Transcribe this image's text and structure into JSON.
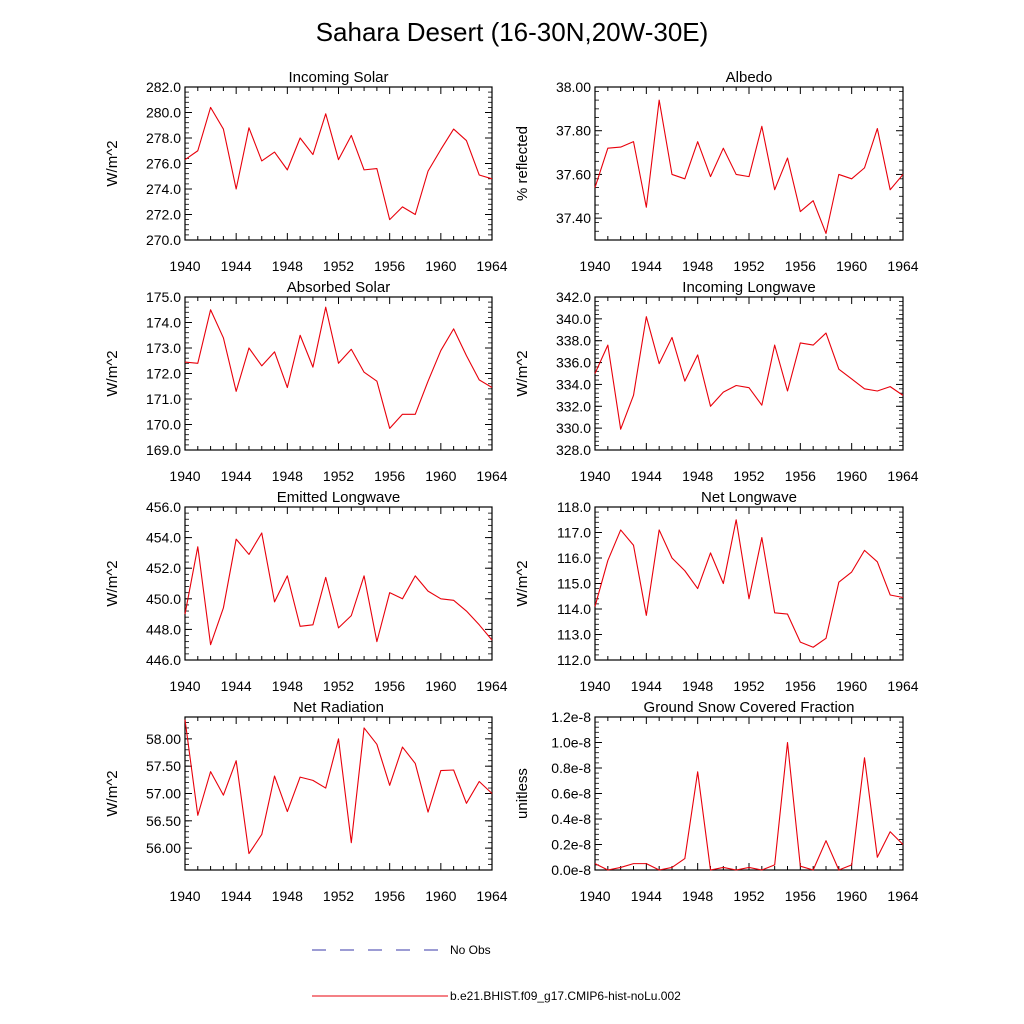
{
  "figure": {
    "title": "Sahara Desert (16-30N,20W-30E)"
  },
  "legend": {
    "entries": [
      {
        "label": "No Obs",
        "color": "#3a3aa8",
        "style": "dashed"
      },
      {
        "label": "b.e21.BHIST.f09_g17.CMIP6-hist-noLu.002",
        "color": "#e8000b",
        "style": "solid"
      }
    ]
  },
  "chart_data": [
    {
      "type": "line",
      "title": "Incoming Solar",
      "ylabel": "W/m^2",
      "xlim": [
        1940,
        1964
      ],
      "ylim": [
        270,
        282
      ],
      "xticks": [
        1940,
        1944,
        1948,
        1952,
        1956,
        1960,
        1964
      ],
      "xtick_labels": [
        "1940",
        "1944",
        "1948",
        "1952",
        "1956",
        "1960",
        "1964"
      ],
      "yticks": [
        270,
        272,
        274,
        276,
        278,
        280,
        282
      ],
      "ytick_labels": [
        "270.0",
        "272.0",
        "274.0",
        "276.0",
        "278.0",
        "280.0",
        "282.0"
      ],
      "x": [
        1940,
        1941,
        1942,
        1943,
        1944,
        1945,
        1946,
        1947,
        1948,
        1949,
        1950,
        1951,
        1952,
        1953,
        1954,
        1955,
        1956,
        1957,
        1958,
        1959,
        1960,
        1961,
        1962,
        1963,
        1964
      ],
      "series": [
        {
          "name": "b.e21.BHIST.f09_g17.CMIP6-hist-noLu.002",
          "color": "#e8000b",
          "values": [
            276.3,
            277.0,
            280.4,
            278.7,
            274.0,
            278.8,
            276.2,
            276.9,
            275.5,
            278.0,
            276.7,
            279.9,
            276.3,
            278.2,
            275.5,
            275.6,
            271.6,
            272.6,
            272.0,
            275.4,
            277.1,
            278.7,
            277.8,
            275.1,
            274.8
          ]
        }
      ],
      "grid": false
    },
    {
      "type": "line",
      "title": "Albedo",
      "ylabel": "% reflected",
      "xlim": [
        1940,
        1964
      ],
      "ylim": [
        37.3,
        38.0
      ],
      "xticks": [
        1940,
        1944,
        1948,
        1952,
        1956,
        1960,
        1964
      ],
      "xtick_labels": [
        "1940",
        "1944",
        "1948",
        "1952",
        "1956",
        "1960",
        "1964"
      ],
      "yticks": [
        37.4,
        37.6,
        37.8,
        38.0
      ],
      "ytick_labels": [
        "37.40",
        "37.60",
        "37.80",
        "38.00"
      ],
      "x": [
        1940,
        1941,
        1942,
        1943,
        1944,
        1945,
        1946,
        1947,
        1948,
        1949,
        1950,
        1951,
        1952,
        1953,
        1954,
        1955,
        1956,
        1957,
        1958,
        1959,
        1960,
        1961,
        1962,
        1963,
        1964
      ],
      "series": [
        {
          "name": "b.e21.BHIST.f09_g17.CMIP6-hist-noLu.002",
          "color": "#e8000b",
          "values": [
            37.54,
            37.72,
            37.725,
            37.75,
            37.45,
            37.94,
            37.6,
            37.58,
            37.75,
            37.59,
            37.72,
            37.6,
            37.59,
            37.82,
            37.53,
            37.675,
            37.43,
            37.48,
            37.33,
            37.6,
            37.58,
            37.63,
            37.81,
            37.53,
            37.6
          ]
        }
      ],
      "grid": false
    },
    {
      "type": "line",
      "title": "Absorbed Solar",
      "ylabel": "W/m^2",
      "xlim": [
        1940,
        1964
      ],
      "ylim": [
        169,
        175
      ],
      "xticks": [
        1940,
        1944,
        1948,
        1952,
        1956,
        1960,
        1964
      ],
      "xtick_labels": [
        "1940",
        "1944",
        "1948",
        "1952",
        "1956",
        "1960",
        "1964"
      ],
      "yticks": [
        169,
        170,
        171,
        172,
        173,
        174,
        175
      ],
      "ytick_labels": [
        "169.0",
        "170.0",
        "171.0",
        "172.0",
        "173.0",
        "174.0",
        "175.0"
      ],
      "x": [
        1940,
        1941,
        1942,
        1943,
        1944,
        1945,
        1946,
        1947,
        1948,
        1949,
        1950,
        1951,
        1952,
        1953,
        1954,
        1955,
        1956,
        1957,
        1958,
        1959,
        1960,
        1961,
        1962,
        1963,
        1964
      ],
      "series": [
        {
          "name": "b.e21.BHIST.f09_g17.CMIP6-hist-noLu.002",
          "color": "#e8000b",
          "values": [
            172.45,
            172.4,
            174.5,
            173.4,
            171.3,
            173.0,
            172.3,
            172.85,
            171.45,
            173.5,
            172.25,
            174.6,
            172.4,
            172.95,
            172.05,
            171.7,
            169.85,
            170.4,
            170.4,
            171.7,
            172.9,
            173.75,
            172.7,
            171.75,
            171.45
          ]
        }
      ],
      "grid": false
    },
    {
      "type": "line",
      "title": "Incoming Longwave",
      "ylabel": "W/m^2",
      "xlim": [
        1940,
        1964
      ],
      "ylim": [
        328,
        342
      ],
      "xticks": [
        1940,
        1944,
        1948,
        1952,
        1956,
        1960,
        1964
      ],
      "xtick_labels": [
        "1940",
        "1944",
        "1948",
        "1952",
        "1956",
        "1960",
        "1964"
      ],
      "yticks": [
        328,
        330,
        332,
        334,
        336,
        338,
        340,
        342
      ],
      "ytick_labels": [
        "328.0",
        "330.0",
        "332.0",
        "334.0",
        "336.0",
        "338.0",
        "340.0",
        "342.0"
      ],
      "x": [
        1940,
        1941,
        1942,
        1943,
        1944,
        1945,
        1946,
        1947,
        1948,
        1949,
        1950,
        1951,
        1952,
        1953,
        1954,
        1955,
        1956,
        1957,
        1958,
        1959,
        1960,
        1961,
        1962,
        1963,
        1964
      ],
      "series": [
        {
          "name": "b.e21.BHIST.f09_g17.CMIP6-hist-noLu.002",
          "color": "#e8000b",
          "values": [
            335.0,
            337.6,
            329.9,
            333.0,
            340.2,
            335.9,
            338.3,
            334.3,
            336.7,
            332.0,
            333.3,
            333.9,
            333.7,
            332.1,
            337.6,
            333.4,
            337.8,
            337.6,
            338.7,
            335.4,
            334.5,
            333.6,
            333.4,
            333.8,
            333.0
          ]
        }
      ],
      "grid": false
    },
    {
      "type": "line",
      "title": "Emitted Longwave",
      "ylabel": "W/m^2",
      "xlim": [
        1940,
        1964
      ],
      "ylim": [
        446,
        456
      ],
      "xticks": [
        1940,
        1944,
        1948,
        1952,
        1956,
        1960,
        1964
      ],
      "xtick_labels": [
        "1940",
        "1944",
        "1948",
        "1952",
        "1956",
        "1960",
        "1964"
      ],
      "yticks": [
        446,
        448,
        450,
        452,
        454,
        456
      ],
      "ytick_labels": [
        "446.0",
        "448.0",
        "450.0",
        "452.0",
        "454.0",
        "456.0"
      ],
      "x": [
        1940,
        1941,
        1942,
        1943,
        1944,
        1945,
        1946,
        1947,
        1948,
        1949,
        1950,
        1951,
        1952,
        1953,
        1954,
        1955,
        1956,
        1957,
        1958,
        1959,
        1960,
        1961,
        1962,
        1963,
        1964
      ],
      "series": [
        {
          "name": "b.e21.BHIST.f09_g17.CMIP6-hist-noLu.002",
          "color": "#e8000b",
          "values": [
            449.0,
            453.4,
            447.0,
            449.4,
            453.9,
            452.9,
            454.3,
            449.8,
            451.5,
            448.2,
            448.3,
            451.4,
            448.1,
            448.9,
            451.5,
            447.2,
            450.4,
            450.0,
            451.5,
            450.5,
            450.0,
            449.9,
            449.2,
            448.3,
            447.3
          ]
        }
      ],
      "grid": false
    },
    {
      "type": "line",
      "title": "Net Longwave",
      "ylabel": "W/m^2",
      "xlim": [
        1940,
        1964
      ],
      "ylim": [
        112,
        118
      ],
      "xticks": [
        1940,
        1944,
        1948,
        1952,
        1956,
        1960,
        1964
      ],
      "xtick_labels": [
        "1940",
        "1944",
        "1948",
        "1952",
        "1956",
        "1960",
        "1964"
      ],
      "yticks": [
        112,
        113,
        114,
        115,
        116,
        117,
        118
      ],
      "ytick_labels": [
        "112.0",
        "113.0",
        "114.0",
        "115.0",
        "116.0",
        "117.0",
        "118.0"
      ],
      "x": [
        1940,
        1941,
        1942,
        1943,
        1944,
        1945,
        1946,
        1947,
        1948,
        1949,
        1950,
        1951,
        1952,
        1953,
        1954,
        1955,
        1956,
        1957,
        1958,
        1959,
        1960,
        1961,
        1962,
        1963,
        1964
      ],
      "series": [
        {
          "name": "b.e21.BHIST.f09_g17.CMIP6-hist-noLu.002",
          "color": "#e8000b",
          "values": [
            114.1,
            115.9,
            117.1,
            116.5,
            113.75,
            117.1,
            116.0,
            115.5,
            114.8,
            116.2,
            115.0,
            117.5,
            114.4,
            116.8,
            113.85,
            113.8,
            112.7,
            112.5,
            112.85,
            115.05,
            115.45,
            116.3,
            115.85,
            114.55,
            114.45
          ]
        }
      ],
      "grid": false
    },
    {
      "type": "line",
      "title": "Net Radiation",
      "ylabel": "W/m^2",
      "xlim": [
        1940,
        1964
      ],
      "ylim": [
        55.6,
        58.4
      ],
      "xticks": [
        1940,
        1944,
        1948,
        1952,
        1956,
        1960,
        1964
      ],
      "xtick_labels": [
        "1940",
        "1944",
        "1948",
        "1952",
        "1956",
        "1960",
        "1964"
      ],
      "yticks": [
        56.0,
        56.5,
        57.0,
        57.5,
        58.0
      ],
      "ytick_labels": [
        "56.00",
        "56.50",
        "57.00",
        "57.50",
        "58.00"
      ],
      "x": [
        1940,
        1941,
        1942,
        1943,
        1944,
        1945,
        1946,
        1947,
        1948,
        1949,
        1950,
        1951,
        1952,
        1953,
        1954,
        1955,
        1956,
        1957,
        1958,
        1959,
        1960,
        1961,
        1962,
        1963,
        1964
      ],
      "series": [
        {
          "name": "b.e21.BHIST.f09_g17.CMIP6-hist-noLu.002",
          "color": "#e8000b",
          "values": [
            58.35,
            56.6,
            57.4,
            56.97,
            57.6,
            55.9,
            56.25,
            57.32,
            56.67,
            57.3,
            57.24,
            57.1,
            58.0,
            56.1,
            58.2,
            57.9,
            57.15,
            57.85,
            57.55,
            56.66,
            57.42,
            57.43,
            56.82,
            57.22,
            57.0
          ]
        }
      ],
      "grid": false
    },
    {
      "type": "line",
      "title": "Ground Snow Covered Fraction",
      "ylabel": "unitless",
      "xlim": [
        1940,
        1964
      ],
      "ylim": [
        0,
        1.2e-08
      ],
      "xticks": [
        1940,
        1944,
        1948,
        1952,
        1956,
        1960,
        1964
      ],
      "xtick_labels": [
        "1940",
        "1944",
        "1948",
        "1952",
        "1956",
        "1960",
        "1964"
      ],
      "yticks": [
        0,
        2e-09,
        4e-09,
        6e-09,
        8e-09,
        1e-08,
        1.2e-08
      ],
      "ytick_labels": [
        "0.0e-8",
        "0.2e-8",
        "0.4e-8",
        "0.6e-8",
        "0.8e-8",
        "1.0e-8",
        "1.2e-8"
      ],
      "x": [
        1940,
        1941,
        1942,
        1943,
        1944,
        1945,
        1946,
        1947,
        1948,
        1949,
        1950,
        1951,
        1952,
        1953,
        1954,
        1955,
        1956,
        1957,
        1958,
        1959,
        1960,
        1961,
        1962,
        1963,
        1964
      ],
      "series": [
        {
          "name": "b.e21.BHIST.f09_g17.CMIP6-hist-noLu.002",
          "color": "#e8000b",
          "values": [
            5e-10,
            0,
            2e-10,
            5e-10,
            5e-10,
            0,
            2e-10,
            9e-10,
            7.7e-09,
            0,
            2e-10,
            0,
            2e-10,
            0,
            4e-10,
            1e-08,
            3e-10,
            0,
            2.3e-09,
            0,
            4e-10,
            8.8e-09,
            1e-09,
            3e-09,
            2e-09
          ]
        }
      ],
      "grid": false
    }
  ]
}
